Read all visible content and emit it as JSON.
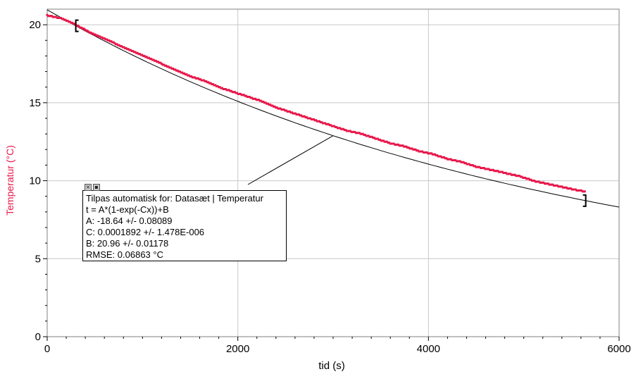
{
  "chart_data": {
    "type": "scatter",
    "xlabel": "tid (s)",
    "ylabel": "Temperatur (°C)",
    "xlim": [
      0,
      6000
    ],
    "ylim": [
      0,
      21
    ],
    "x_ticks": [
      0,
      2000,
      4000,
      6000
    ],
    "y_ticks": [
      0,
      5,
      10,
      15,
      20
    ],
    "grid": true,
    "series": [
      {
        "type": "scatter",
        "color": "#e8174a",
        "x": [
          0,
          150,
          300,
          450,
          600,
          750,
          900,
          1050,
          1200,
          1350,
          1500,
          1650,
          1800,
          1950,
          2100,
          2250,
          2400,
          2550,
          2700,
          2850,
          3000,
          3150,
          3300,
          3450,
          3600,
          3750,
          3900,
          4050,
          4200,
          4350,
          4500,
          4650,
          4800,
          4950,
          5100,
          5250,
          5400,
          5550,
          5650
        ],
        "y": [
          20.6,
          20.4,
          20.0,
          19.5,
          19.1,
          18.7,
          18.3,
          17.9,
          17.5,
          17.1,
          16.7,
          16.4,
          16.0,
          15.7,
          15.4,
          15.1,
          14.7,
          14.4,
          14.1,
          13.8,
          13.5,
          13.2,
          13.0,
          12.7,
          12.4,
          12.2,
          11.9,
          11.7,
          11.4,
          11.2,
          10.9,
          10.7,
          10.5,
          10.3,
          10.0,
          9.8,
          9.6,
          9.4,
          9.3
        ]
      },
      {
        "type": "line",
        "color": "#000000",
        "fit": "t = A*(1-exp(-Cx))+B",
        "A": -18.64,
        "C": 0.0001892,
        "B": 20.96,
        "x_range": [
          0,
          6000
        ]
      }
    ],
    "fit_range": [
      300,
      5650
    ],
    "annotation": {
      "anchor": [
        3000,
        13.0
      ],
      "lines": [
        "Tilpas automatisk for: Datasæt | Temperatur",
        "t = A*(1-exp(-Cx))+B",
        "A: -18.64 +/- 0.08089",
        "C: 0.0001892 +/- 1.478E-006",
        "B: 20.96 +/- 0.01178",
        "RMSE: 0.06863 °C"
      ]
    }
  }
}
